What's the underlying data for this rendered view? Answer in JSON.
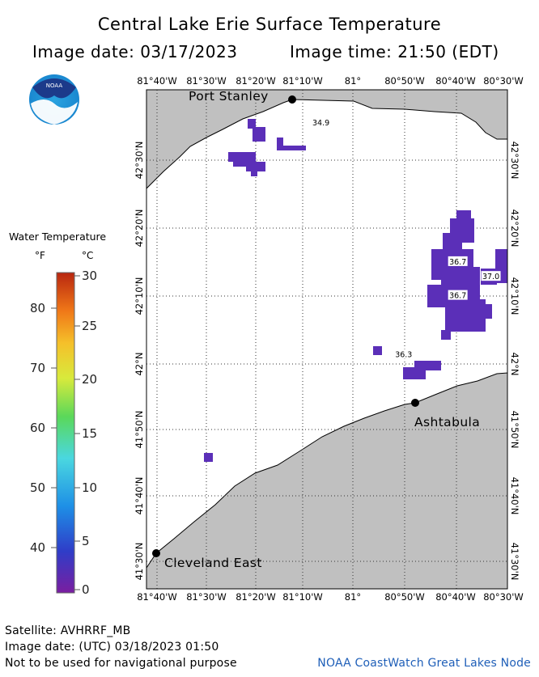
{
  "title": "Central Lake Erie Surface Temperature",
  "image_date_local": "Image date: 03/17/2023",
  "image_time_local": "Image time: 21:50 (EDT)",
  "logo": {
    "text": "NOAA",
    "icon": "noaa-logo"
  },
  "map": {
    "lon_labels": [
      "81°40'W",
      "81°30'W",
      "81°20'W",
      "81°10'W",
      "81°",
      "80°50'W",
      "80°40'W",
      "80°30'W"
    ],
    "lat_labels": [
      "42°30'N",
      "42°20'N",
      "42°10'N",
      "42°N",
      "41°50'N",
      "41°40'N",
      "41°30'N"
    ],
    "lon_range": [
      "81°42'W",
      "80°30'W"
    ],
    "lat_range": [
      "41°27'N",
      "42°38'N"
    ],
    "grid": "dotted",
    "colors": {
      "land": "#c0c0c0",
      "water": "#ffffff",
      "sst_cells": "#5b2fb8",
      "city": "#000000"
    },
    "cities": [
      {
        "name": "Port Stanley",
        "lon": -81.215,
        "lat": 42.665
      },
      {
        "name": "Ashtabula",
        "lon": -80.79,
        "lat": 41.895
      },
      {
        "name": "Cleveland East",
        "lon": -81.665,
        "lat": 41.525
      }
    ],
    "temperature_labels": [
      {
        "value": "34.9",
        "lon": -81.12,
        "lat": 42.555
      },
      {
        "value": "36.7",
        "lon": -80.665,
        "lat": 42.225
      },
      {
        "value": "37.0",
        "lon": -80.555,
        "lat": 42.19
      },
      {
        "value": "36.7",
        "lon": -80.665,
        "lat": 42.145
      },
      {
        "value": "36.3",
        "lon": -80.845,
        "lat": 42.005
      }
    ]
  },
  "legend": {
    "title": "Water Temperature",
    "unit_f": "°F",
    "unit_c": "°C",
    "f_labels": [
      "80",
      "70",
      "60",
      "50",
      "40"
    ],
    "c_labels": [
      "30",
      "25",
      "20",
      "15",
      "10",
      "5",
      "0"
    ],
    "range_c": [
      0,
      30
    ],
    "gradient": [
      "#7a1ea0",
      "#2f3dc8",
      "#1e8fe6",
      "#4ad7e0",
      "#5ad85a",
      "#d8ea3c",
      "#f5c02a",
      "#f07818",
      "#b82610"
    ]
  },
  "footer": {
    "satellite": "Satellite: AVHRRF_MB",
    "utc_date": "Image date: (UTC) 03/18/2023  01:50",
    "disclaimer": "Not to be used for navigational purpose",
    "node": "NOAA CoastWatch Great Lakes Node"
  }
}
